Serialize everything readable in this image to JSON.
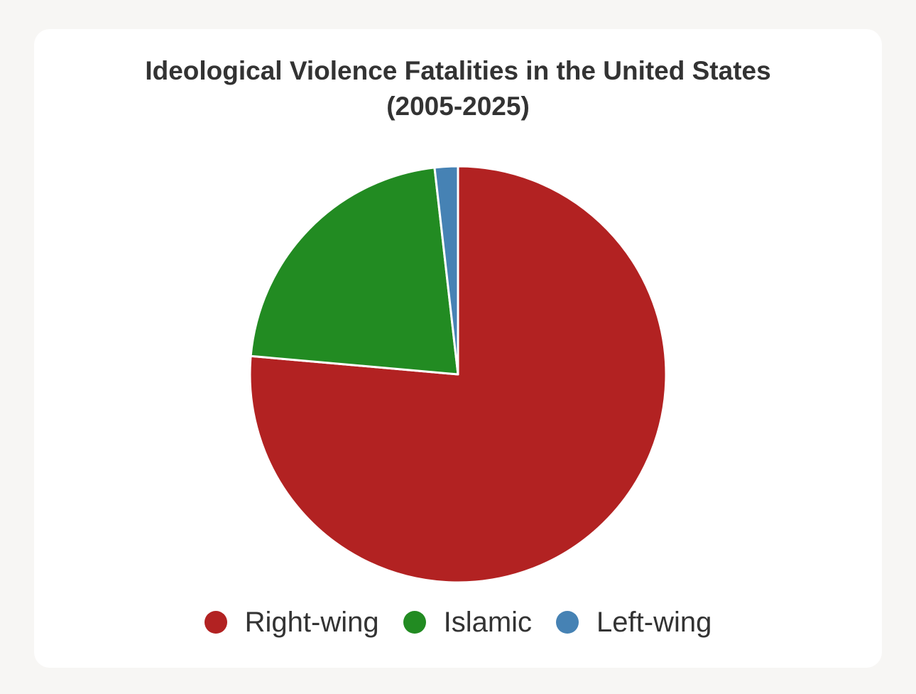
{
  "chart_data": {
    "type": "pie",
    "title_lines": [
      "Ideological Violence Fatalities in the United States",
      "(2005-2025)"
    ],
    "slices": [
      {
        "label": "Right-wing",
        "value": 76.4,
        "color": "#b22222"
      },
      {
        "label": "Islamic",
        "value": 21.8,
        "color": "#228b22"
      },
      {
        "label": "Left-wing",
        "value": 1.8,
        "color": "#4682b4"
      }
    ],
    "start_angle_deg": 0,
    "direction": "clockwise",
    "legend_position": "bottom"
  }
}
